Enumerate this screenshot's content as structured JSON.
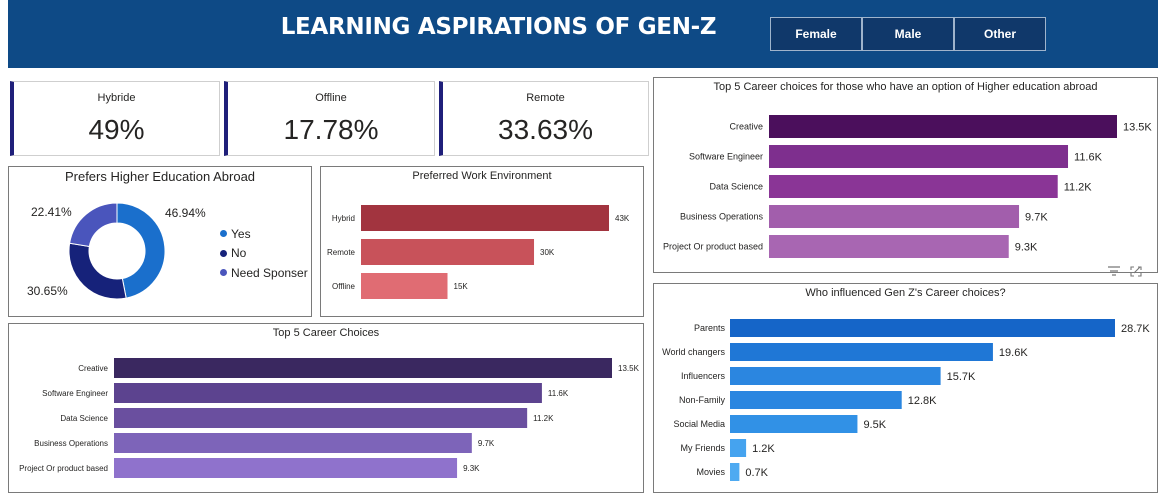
{
  "header": {
    "title": "LEARNING ASPIRATIONS OF GEN-Z",
    "slicer": [
      "Female",
      "Male",
      "Other"
    ]
  },
  "cards": [
    {
      "label": "Hybride",
      "value": "49%"
    },
    {
      "label": "Offline",
      "value": "17.78%"
    },
    {
      "label": "Remote",
      "value": "33.63%"
    }
  ],
  "colors": {
    "header_bg": "#0e4a86",
    "donut_yes": "#1a6fcc",
    "donut_no": "#16227a",
    "donut_need": "#4a55bc",
    "work_env": [
      "#a2343f",
      "#c8525a",
      "#e06c73"
    ],
    "career": [
      "#3a2860",
      "#5c438f",
      "#6a4f9f",
      "#7d64b9",
      "#8f72cc"
    ],
    "abroad": [
      "#4b0f5c",
      "#7e2f8e",
      "#8a3596",
      "#a25eac",
      "#a866b2"
    ],
    "influence": [
      "#1565c8",
      "#1f77d6",
      "#2b86e0",
      "#2b86e0",
      "#3191e6",
      "#45a3ef",
      "#4eaaf1"
    ]
  },
  "chart_data": [
    {
      "type": "pie",
      "title": "Prefers Higher Education Abroad",
      "categories": [
        "Yes",
        "No",
        "Need Sponser"
      ],
      "values": [
        46.94,
        30.65,
        22.41
      ],
      "labels": [
        "46.94%",
        "30.65%",
        "22.41%"
      ],
      "legend": "right"
    },
    {
      "type": "bar",
      "orientation": "horizontal",
      "title": "Preferred Work Environment",
      "categories": [
        "Hybrid",
        "Remote",
        "Offline"
      ],
      "values": [
        43000,
        30000,
        15000
      ],
      "labels": [
        "43K",
        "30K",
        "15K"
      ]
    },
    {
      "type": "bar",
      "orientation": "horizontal",
      "title": "Top 5 Career Choices",
      "categories": [
        "Creative",
        "Software Engineer",
        "Data Science",
        "Business Operations",
        "Project Or product based"
      ],
      "values": [
        13500,
        11600,
        11200,
        9700,
        9300
      ],
      "labels": [
        "13.5K",
        "11.6K",
        "11.2K",
        "9.7K",
        "9.3K"
      ]
    },
    {
      "type": "bar",
      "orientation": "horizontal",
      "title": "Top 5 Career choices for those who have an option of Higher education abroad",
      "categories": [
        "Creative",
        "Software Engineer",
        "Data Science",
        "Business Operations",
        "Project Or product based"
      ],
      "values": [
        13500,
        11600,
        11200,
        9700,
        9300
      ],
      "labels": [
        "13.5K",
        "11.6K",
        "11.2K",
        "9.7K",
        "9.3K"
      ]
    },
    {
      "type": "bar",
      "orientation": "horizontal",
      "title": "Who influenced Gen Z's Career choices?",
      "categories": [
        "Parents",
        "World changers",
        "Influencers",
        "Non-Family",
        "Social Media",
        "My Friends",
        "Movies"
      ],
      "values": [
        28700,
        19600,
        15700,
        12800,
        9500,
        1200,
        700
      ],
      "labels": [
        "28.7K",
        "19.6K",
        "15.7K",
        "12.8K",
        "9.5K",
        "1.2K",
        "0.7K"
      ]
    }
  ]
}
